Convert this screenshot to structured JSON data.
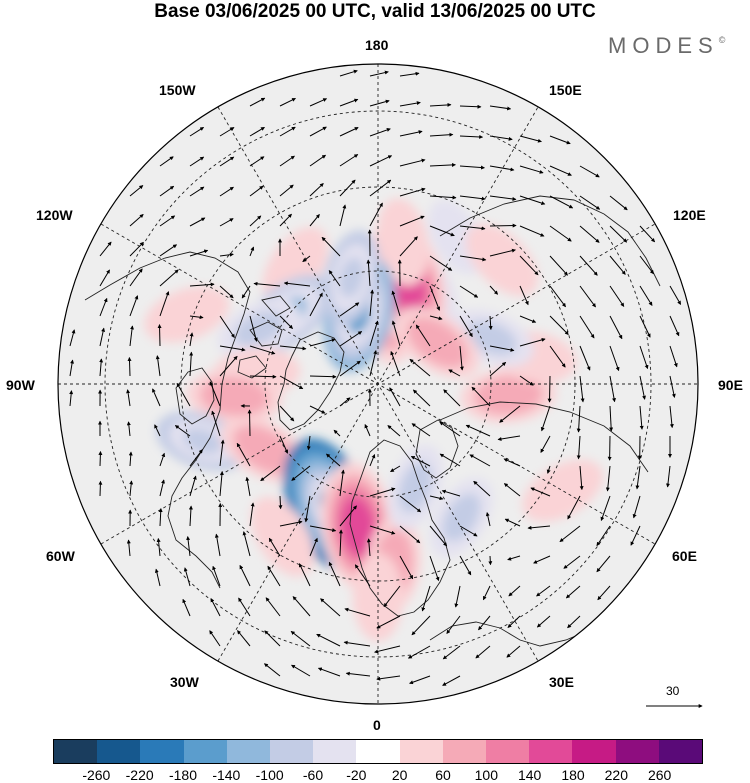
{
  "title": "Base 03/06/2025 00 UTC, valid 13/06/2025 00 UTC",
  "logo": {
    "text": "MODES",
    "mark": "©"
  },
  "longitude_labels": {
    "top": "180",
    "bottom": "0",
    "left": "90W",
    "right": "90E",
    "upper_left_1": "150W",
    "upper_left_2": "120W",
    "upper_right_1": "150E",
    "upper_right_2": "120E",
    "lower_left_1": "60W",
    "lower_left_2": "30W",
    "lower_right_1": "60E",
    "lower_right_2": "30E"
  },
  "reference_vector": {
    "value": "30",
    "icon": "arrow-right-icon"
  },
  "colorbar": {
    "colors": [
      "#1a3d5e",
      "#16588e",
      "#2a7ab8",
      "#5b9dcd",
      "#90b8dc",
      "#c3cce5",
      "#e4e2f0",
      "#ffffff",
      "#fad3d6",
      "#f5aab7",
      "#ef7ea4",
      "#e24a98",
      "#c61b85",
      "#8e0d7f",
      "#5a0a78"
    ],
    "labels": [
      "-260",
      "-220",
      "-180",
      "-140",
      "-100",
      "-60",
      "-20",
      "20",
      "60",
      "100",
      "140",
      "180",
      "220",
      "260"
    ]
  },
  "map": {
    "projection": "north-polar-stereographic",
    "background_color": "#eeeeee",
    "anomaly_blobs": [
      {
        "lon": 152,
        "lat": 63,
        "value": -40
      },
      {
        "lon": 152,
        "lat": 50,
        "value": -40
      },
      {
        "lon": 172,
        "lat": 73,
        "value": 80
      },
      {
        "lon": 164,
        "lat": 64,
        "value": 170
      },
      {
        "lon": 170,
        "lat": 55,
        "value": 60
      },
      {
        "lon": -165,
        "lat": 72,
        "value": -140
      },
      {
        "lon": -166,
        "lat": 63,
        "value": -80
      },
      {
        "lon": -145,
        "lat": 55,
        "value": 60
      },
      {
        "lon": -128,
        "lat": 62,
        "value": -100
      },
      {
        "lon": -115,
        "lat": 58,
        "value": -60
      },
      {
        "lon": -110,
        "lat": 42,
        "value": 60
      },
      {
        "lon": -95,
        "lat": 60,
        "value": 60
      },
      {
        "lon": -85,
        "lat": 55,
        "value": 80
      },
      {
        "lon": -72,
        "lat": 46,
        "value": -80
      },
      {
        "lon": -60,
        "lat": 58,
        "value": 80
      },
      {
        "lon": -22,
        "lat": 58,
        "value": -200
      },
      {
        "lon": -32,
        "lat": 47,
        "value": 60
      },
      {
        "lon": -8,
        "lat": 55,
        "value": 170
      },
      {
        "lon": 5,
        "lat": 47,
        "value": 80
      },
      {
        "lon": 0,
        "lat": 40,
        "value": 60
      },
      {
        "lon": 20,
        "lat": 63,
        "value": -60
      },
      {
        "lon": 32,
        "lat": 52,
        "value": -60
      },
      {
        "lon": 60,
        "lat": 40,
        "value": 60
      },
      {
        "lon": 85,
        "lat": 58,
        "value": 80
      },
      {
        "lon": 100,
        "lat": 52,
        "value": 60
      },
      {
        "lon": 112,
        "lat": 60,
        "value": -60
      },
      {
        "lon": 125,
        "lat": 72,
        "value": 80
      },
      {
        "lon": 135,
        "lat": 48,
        "value": 60
      }
    ]
  }
}
